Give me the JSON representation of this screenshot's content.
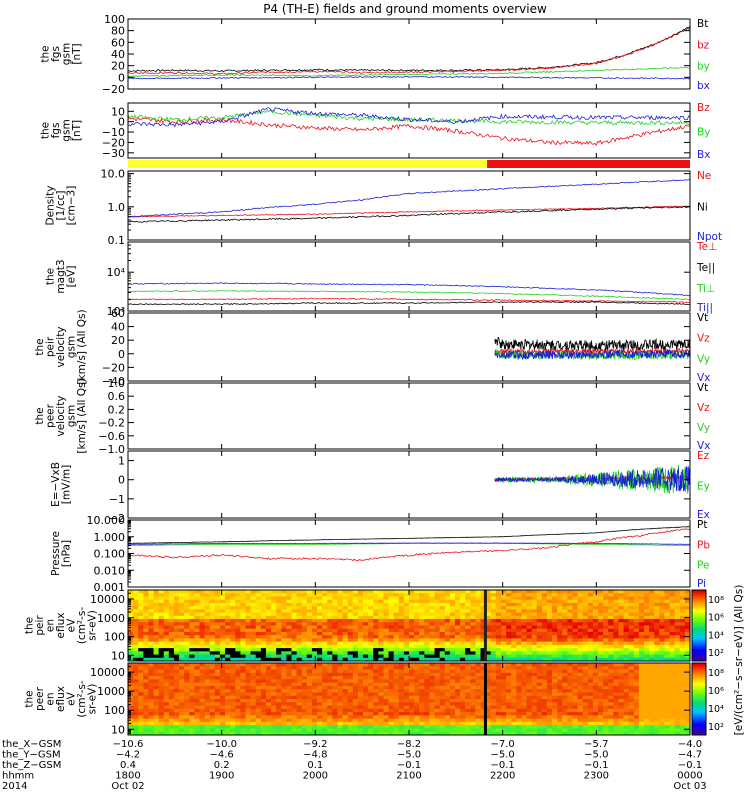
{
  "title": "P4 (TH-E) fields and ground moments overview",
  "colors": {
    "black": "#000000",
    "red": "#e8141c",
    "green": "#1fd21f",
    "blue": "#1e1ed8",
    "yellow": "#ffff33",
    "bar_red": "#ee1111"
  },
  "status_bar": {
    "segments": [
      {
        "from": 1800,
        "to": 2150,
        "color": "yellow"
      },
      {
        "from": 2150,
        "to": 2400,
        "color": "red"
      }
    ]
  },
  "chart_data": [
    {
      "type": "line",
      "id": "fgs_bt",
      "ylabel": [
        "the",
        "fgs",
        "gsm",
        "[nT]"
      ],
      "ylim": [
        -20,
        100
      ],
      "yticks": [
        -20,
        0,
        20,
        40,
        60,
        80,
        100
      ],
      "ytick_labels": [
        "−20",
        "0",
        "20",
        "40",
        "60",
        "80",
        "100"
      ],
      "series": [
        {
          "name": "Bt",
          "color": "black",
          "x": [
            1800,
            1830,
            1900,
            1930,
            2000,
            2030,
            2100,
            2130,
            2200,
            2230,
            2300,
            2320,
            2340,
            2400
          ],
          "y": [
            11,
            12,
            11,
            12,
            13,
            12,
            12,
            12,
            13,
            17,
            25,
            40,
            60,
            87
          ],
          "noise": 1.5
        },
        {
          "name": "bz",
          "color": "red",
          "x": [
            1800,
            1830,
            1900,
            1930,
            2000,
            2030,
            2100,
            2130,
            2200,
            2230,
            2300,
            2320,
            2340,
            2400
          ],
          "y": [
            7,
            8,
            6,
            9,
            10,
            8,
            9,
            10,
            12,
            16,
            24,
            39,
            59,
            85
          ],
          "noise": 1.5
        },
        {
          "name": "by",
          "color": "green",
          "x": [
            1800,
            1900,
            2000,
            2100,
            2200,
            2300,
            2400
          ],
          "y": [
            2,
            4,
            3,
            5,
            7,
            12,
            17
          ],
          "noise": 1
        },
        {
          "name": "bx",
          "color": "blue",
          "x": [
            1800,
            1900,
            2000,
            2100,
            2200,
            2300,
            2400
          ],
          "y": [
            -2,
            -1,
            0,
            1,
            0,
            -1,
            -2
          ],
          "noise": 1
        }
      ]
    },
    {
      "type": "line",
      "id": "fgs_bxyz",
      "ylabel": [
        "the",
        "fgs",
        "gsm",
        "[nT]"
      ],
      "ylim": [
        -35,
        18
      ],
      "yticks": [
        -30,
        -20,
        -10,
        0,
        10
      ],
      "ytick_labels": [
        "−30",
        "−20",
        "−10",
        "0",
        "10"
      ],
      "series": [
        {
          "name": "Bz",
          "color": "red",
          "x": [
            1800,
            1830,
            1900,
            1930,
            2000,
            2030,
            2100,
            2130,
            2200,
            2230,
            2300,
            2330,
            2400
          ],
          "y": [
            3,
            0,
            2,
            -3,
            -6,
            -8,
            -4,
            -9,
            -16,
            -20,
            -21,
            -12,
            -4
          ],
          "noise": 2
        },
        {
          "name": "By",
          "color": "green",
          "x": [
            1800,
            1830,
            1900,
            1930,
            2000,
            2030,
            2100,
            2130,
            2200,
            2300,
            2400
          ],
          "y": [
            5,
            2,
            4,
            10,
            6,
            3,
            2,
            1,
            0,
            -1,
            -1
          ],
          "noise": 2
        },
        {
          "name": "Bx",
          "color": "blue",
          "x": [
            1800,
            1830,
            1900,
            1930,
            2000,
            2030,
            2100,
            2130,
            2200,
            2300,
            2400
          ],
          "y": [
            -2,
            -3,
            0,
            12,
            8,
            6,
            2,
            0,
            5,
            4,
            4
          ],
          "noise": 2
        }
      ]
    },
    {
      "type": "line",
      "id": "density",
      "yscale": "log",
      "ylabel": [
        "Density",
        "[1/cc]",
        "[cm−3]"
      ],
      "ylim": [
        0.1,
        12
      ],
      "yticks": [
        0.1,
        1.0,
        10.0
      ],
      "ytick_labels": [
        "0.1",
        "1.0",
        "10.0"
      ],
      "series": [
        {
          "name": "Ne",
          "color": "red",
          "x": [
            1800,
            1900,
            2000,
            2100,
            2200,
            2300,
            2400
          ],
          "y": [
            0.5,
            0.55,
            0.6,
            0.7,
            0.8,
            0.9,
            1.05
          ],
          "noise": 0.03
        },
        {
          "name": "Ni",
          "color": "black",
          "x": [
            1800,
            1900,
            2000,
            2100,
            2200,
            2300,
            2400
          ],
          "y": [
            0.35,
            0.4,
            0.45,
            0.55,
            0.7,
            0.85,
            1.0
          ],
          "noise": 0.05
        },
        {
          "name": "Npot",
          "color": "blue",
          "x": [
            1800,
            1900,
            2000,
            2030,
            2100,
            2200,
            2300,
            2400
          ],
          "y": [
            0.5,
            0.7,
            1.2,
            1.6,
            2.5,
            3.5,
            4.8,
            6.5
          ],
          "noise": 0.04
        }
      ]
    },
    {
      "type": "line",
      "id": "temperature",
      "yscale": "log",
      "ylabel": [
        "the",
        "magt3",
        "[eV]"
      ],
      "ylim": [
        1000,
        60000
      ],
      "yticks": [
        1000,
        10000
      ],
      "ytick_labels": [
        "10³",
        "10⁴"
      ],
      "series": [
        {
          "name": "Te⊥",
          "color": "red",
          "x": [
            1800,
            1900,
            2000,
            2100,
            2200,
            2300,
            2400
          ],
          "y": [
            2000,
            2000,
            2100,
            2000,
            1900,
            1800,
            1700
          ],
          "noise": 0.03
        },
        {
          "name": "Te||",
          "color": "black",
          "x": [
            1800,
            1900,
            2000,
            2100,
            2200,
            2300,
            2400
          ],
          "y": [
            1500,
            1500,
            1600,
            1600,
            1700,
            1700,
            1500
          ],
          "noise": 0.03
        },
        {
          "name": "Ti⊥",
          "color": "green",
          "x": [
            1800,
            1900,
            2000,
            2100,
            2200,
            2300,
            2400
          ],
          "y": [
            3200,
            3300,
            3200,
            3100,
            2800,
            2400,
            2000
          ],
          "noise": 0.03
        },
        {
          "name": "Ti||",
          "color": "blue",
          "x": [
            1800,
            1900,
            2000,
            2100,
            2200,
            2300,
            2400
          ],
          "y": [
            5000,
            5200,
            5000,
            4800,
            4200,
            3500,
            2500
          ],
          "noise": 0.03
        }
      ]
    },
    {
      "type": "line",
      "id": "peir_velocity",
      "ylabel": [
        "the",
        "peir",
        "velocity",
        "gsm",
        "[km/s] (All Qs)"
      ],
      "ylim": [
        -40,
        60
      ],
      "yticks": [
        -40,
        -20,
        0,
        20,
        40,
        60
      ],
      "ytick_labels": [
        "−40",
        "−20",
        "0",
        "20",
        "40",
        "60"
      ],
      "series": [
        {
          "name": "Vt",
          "color": "black",
          "x": [
            2155,
            2200,
            2300,
            2400
          ],
          "y": [
            20,
            14,
            12,
            14
          ],
          "noise": 8,
          "from": 2155
        },
        {
          "name": "Vz",
          "color": "red",
          "x": [
            2155,
            2200,
            2300,
            2400
          ],
          "y": [
            2,
            3,
            3,
            4
          ],
          "noise": 4,
          "from": 2155
        },
        {
          "name": "Vy",
          "color": "green",
          "x": [
            2155,
            2200,
            2300,
            2400
          ],
          "y": [
            0,
            -2,
            -3,
            -2
          ],
          "noise": 6,
          "from": 2155
        },
        {
          "name": "Vx",
          "color": "blue",
          "x": [
            2155,
            2200,
            2300,
            2400
          ],
          "y": [
            -3,
            -2,
            -1,
            0
          ],
          "noise": 6,
          "from": 2155
        }
      ]
    },
    {
      "type": "line",
      "id": "peer_velocity",
      "ylabel": [
        "the",
        "peer",
        "velocity",
        "gsm",
        "[km/s] (All Qs)"
      ],
      "ylim": [
        -1,
        1
      ],
      "yticks": [
        -1.0,
        -0.6,
        -0.2,
        0.2,
        0.6,
        1.0
      ],
      "ytick_labels": [
        "−1.0",
        "−0.6",
        "−0.2",
        "0.2",
        "0.6",
        "1.0"
      ],
      "series": [
        {
          "name": "Vt",
          "color": "black",
          "x": [],
          "y": []
        },
        {
          "name": "Vz",
          "color": "red",
          "x": [],
          "y": []
        },
        {
          "name": "Vy",
          "color": "green",
          "x": [],
          "y": []
        },
        {
          "name": "Vx",
          "color": "blue",
          "x": [],
          "y": []
        }
      ]
    },
    {
      "type": "line",
      "id": "efield",
      "ylabel": [
        "E=−VxB",
        "[mV/m]"
      ],
      "ylim": [
        -2,
        1.5
      ],
      "yticks": [
        -2,
        -1,
        0,
        1
      ],
      "ytick_labels": [
        "−2",
        "−1",
        "0",
        "1"
      ],
      "series": [
        {
          "name": "Ez",
          "color": "red",
          "x": [
            2155,
            2300,
            2400
          ],
          "y": [
            0,
            0.05,
            0.1
          ],
          "noise": 0.1,
          "from": 2155
        },
        {
          "name": "Ey",
          "color": "green",
          "x": [
            2155,
            2300,
            2330,
            2400
          ],
          "y": [
            0,
            0,
            0,
            0
          ],
          "noise": 0.15,
          "grow": 0.7,
          "from": 2155
        },
        {
          "name": "Ex",
          "color": "blue",
          "x": [
            2155,
            2300,
            2400
          ],
          "y": [
            0,
            0.02,
            0.05
          ],
          "noise": 0.1,
          "grow": 0.6,
          "from": 2155
        }
      ]
    },
    {
      "type": "line",
      "id": "pressure",
      "yscale": "log",
      "ylabel": [
        "Pressure",
        "[nPa]"
      ],
      "ylim": [
        0.001,
        10
      ],
      "yticks": [
        0.001,
        0.01,
        0.1,
        1.0,
        10.0
      ],
      "ytick_labels": [
        "0.001",
        "0.010",
        "0.100",
        "1.000",
        "10.000"
      ],
      "series": [
        {
          "name": "Pt",
          "color": "black",
          "x": [
            1800,
            1900,
            2000,
            2100,
            2200,
            2300,
            2400
          ],
          "y": [
            0.4,
            0.5,
            0.65,
            0.8,
            1.0,
            1.7,
            4.0
          ],
          "noise": 0.02
        },
        {
          "name": "Pb",
          "color": "red",
          "x": [
            1800,
            1830,
            1900,
            1930,
            2000,
            2030,
            2100,
            2130,
            2200,
            2230,
            2300,
            2330,
            2400
          ],
          "y": [
            0.08,
            0.06,
            0.08,
            0.05,
            0.05,
            0.04,
            0.08,
            0.12,
            0.15,
            0.22,
            0.5,
            1.2,
            3.0
          ],
          "noise": 0.12
        },
        {
          "name": "Pe",
          "color": "green",
          "x": [
            1800,
            1900,
            2000,
            2100,
            2200,
            2300,
            2400
          ],
          "y": [
            0.3,
            0.35,
            0.35,
            0.4,
            0.4,
            0.35,
            0.3
          ],
          "noise": 0.02
        },
        {
          "name": "Pi",
          "color": "blue",
          "x": [
            1800,
            1900,
            2000,
            2100,
            2200,
            2300,
            2400
          ],
          "y": [
            0.35,
            0.4,
            0.4,
            0.42,
            0.42,
            0.4,
            0.35
          ],
          "noise": 0.02
        }
      ]
    },
    {
      "type": "heatmap",
      "id": "peir_spectrogram",
      "yscale": "log",
      "ylabel": [
        "the",
        "peir",
        "en",
        "eflux",
        "eV",
        "(cm²-s-",
        "sr-eV)"
      ],
      "ylim": [
        5,
        30000
      ],
      "yticks": [
        10,
        100,
        1000,
        10000
      ],
      "ytick_labels": [
        "10",
        "100",
        "1000",
        "10000"
      ],
      "colorbar": {
        "ticks": [
          "10²",
          "10⁴",
          "10⁶",
          "10⁸"
        ],
        "label": "[eV/(cm²−s−sr−eV)] (All Qs)"
      }
    },
    {
      "type": "heatmap",
      "id": "peer_spectrogram",
      "yscale": "log",
      "ylabel": [
        "the",
        "peer",
        "en",
        "eflux",
        "eV",
        "(cm²-s-",
        "sr-eV)"
      ],
      "ylim": [
        5,
        30000
      ],
      "yticks": [
        10,
        100,
        1000,
        10000
      ],
      "ytick_labels": [
        "10",
        "100",
        "1000",
        "10000"
      ],
      "colorbar": {
        "ticks": [
          "10²",
          "10⁴",
          "10⁶",
          "10⁸"
        ],
        "label": "[eV/(cm²−s−sr−eV)] (All Qs)"
      }
    }
  ],
  "x_axis": {
    "xlim": [
      1800,
      2400
    ],
    "ticks": [
      1800,
      1900,
      2000,
      2100,
      2200,
      2300,
      2400
    ],
    "rows": [
      {
        "label": "the_X−GSM",
        "values": [
          "−10.6",
          "−10.0",
          "−9.2",
          "−8.2",
          "−7.0",
          "−5.7",
          "−4.0"
        ]
      },
      {
        "label": "the_Y−GSM",
        "values": [
          "−4.2",
          "−4.6",
          "−4.8",
          "−5.0",
          "−5.0",
          "−5.0",
          "−4.7"
        ]
      },
      {
        "label": "the_Z−GSM",
        "values": [
          "0.4",
          "0.2",
          "0.1",
          "−0.1",
          "−0.1",
          "−0.1",
          "−0.1"
        ]
      },
      {
        "label": "hhmm",
        "values": [
          "1800",
          "1900",
          "2000",
          "2100",
          "2200",
          "2300",
          "0000"
        ]
      },
      {
        "label": "2014",
        "values": [
          "Oct 02",
          "",
          "",
          "",
          "",
          "",
          "Oct 03"
        ]
      }
    ]
  }
}
